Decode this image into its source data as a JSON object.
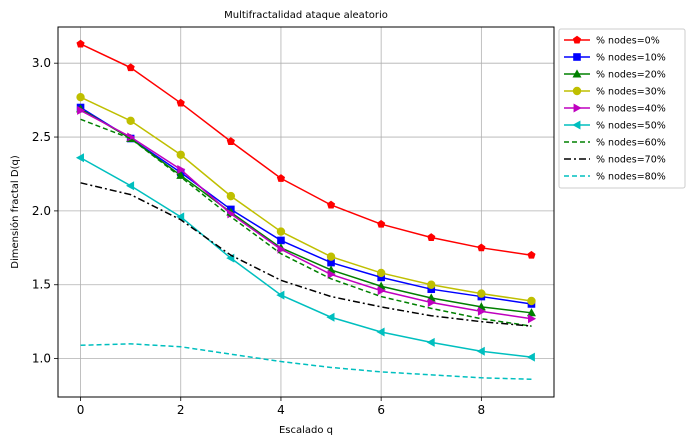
{
  "chart_data": {
    "type": "line",
    "title": "Multifractalidad ataque aleatorio",
    "xlabel": "Escalado q",
    "ylabel": "Dimensión fractal D(q)",
    "xlim": [
      -0.45,
      9.45
    ],
    "ylim": [
      0.74,
      3.245
    ],
    "xticks": [
      0,
      2,
      4,
      6,
      8
    ],
    "xtick_labels": [
      "0",
      "2",
      "4",
      "6",
      "8"
    ],
    "yticks": [
      1.0,
      1.5,
      2.0,
      2.5,
      3.0
    ],
    "ytick_labels": [
      "1.0",
      "1.5",
      "2.0",
      "2.5",
      "3.0"
    ],
    "grid": true,
    "legend_position": "outside-right-top",
    "x": [
      0,
      1,
      2,
      3,
      4,
      5,
      6,
      7,
      8,
      9
    ],
    "series": [
      {
        "name": "% nodes=0%",
        "color": "#ff0000",
        "marker": "pentagon",
        "dash": "solid",
        "values": [
          3.13,
          2.97,
          2.73,
          2.47,
          2.22,
          2.04,
          1.91,
          1.82,
          1.75,
          1.7
        ]
      },
      {
        "name": "% nodes=10%",
        "color": "#0000ff",
        "marker": "square",
        "dash": "solid",
        "values": [
          2.7,
          2.49,
          2.26,
          2.01,
          1.8,
          1.65,
          1.55,
          1.47,
          1.42,
          1.37
        ]
      },
      {
        "name": "% nodes=20%",
        "color": "#008000",
        "marker": "triangle-up",
        "dash": "solid",
        "values": [
          2.69,
          2.49,
          2.24,
          1.99,
          1.75,
          1.6,
          1.49,
          1.41,
          1.35,
          1.31
        ]
      },
      {
        "name": "% nodes=30%",
        "color": "#bfbf00",
        "marker": "circle",
        "dash": "solid",
        "values": [
          2.77,
          2.61,
          2.38,
          2.1,
          1.86,
          1.69,
          1.58,
          1.5,
          1.44,
          1.39
        ]
      },
      {
        "name": "% nodes=40%",
        "color": "#bf00bf",
        "marker": "triangle-right",
        "dash": "solid",
        "values": [
          2.68,
          2.5,
          2.28,
          1.98,
          1.74,
          1.57,
          1.46,
          1.38,
          1.32,
          1.27
        ]
      },
      {
        "name": "% nodes=50%",
        "color": "#00bfbf",
        "marker": "triangle-left",
        "dash": "solid",
        "values": [
          2.36,
          2.17,
          1.96,
          1.68,
          1.43,
          1.28,
          1.18,
          1.11,
          1.05,
          1.01
        ]
      },
      {
        "name": "% nodes=60%",
        "color": "#008000",
        "marker": "none",
        "dash": "dashed",
        "values": [
          2.62,
          2.49,
          2.23,
          1.96,
          1.71,
          1.54,
          1.42,
          1.34,
          1.27,
          1.22
        ]
      },
      {
        "name": "% nodes=70%",
        "color": "#000000",
        "marker": "none",
        "dash": "dashdot",
        "values": [
          2.19,
          2.11,
          1.94,
          1.7,
          1.53,
          1.42,
          1.35,
          1.29,
          1.25,
          1.22
        ]
      },
      {
        "name": "% nodes=80%",
        "color": "#00bfbf",
        "marker": "none",
        "dash": "dashed",
        "values": [
          1.09,
          1.1,
          1.08,
          1.03,
          0.98,
          0.94,
          0.91,
          0.89,
          0.87,
          0.86
        ]
      }
    ]
  }
}
